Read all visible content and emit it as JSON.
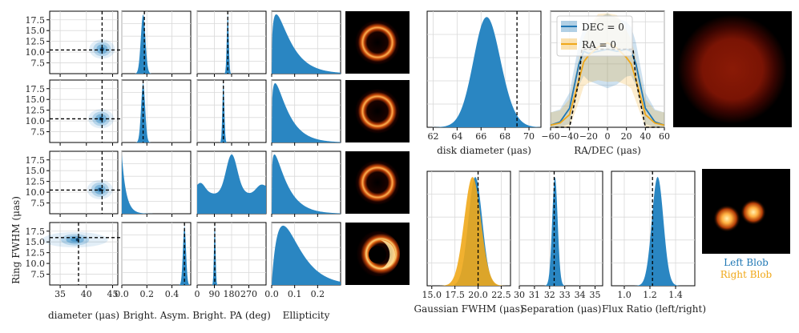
{
  "chart_data": {
    "type": "figure",
    "colors": {
      "blue": "#1f77b4",
      "fill_blue": "#2a86c2",
      "orange": "#f0a81a",
      "dashed": "#000000"
    },
    "corner_grid": {
      "ylabel": "Ring FWHM (μas)",
      "yticks": [
        "17.5",
        "15.0",
        "12.5",
        "10.0",
        "7.5"
      ],
      "yticks_values": [
        17.5,
        15.0,
        12.5,
        10.0,
        7.5
      ],
      "ylim": [
        5,
        19.5
      ],
      "columns": [
        {
          "xlabel": "diameter (μas)",
          "xticks": [
            "35",
            "40",
            "45"
          ],
          "xticks_values": [
            35,
            40,
            45
          ],
          "xlim": [
            33,
            46
          ]
        },
        {
          "xlabel": "Bright. Asym.",
          "xticks": [
            "0.0",
            "0.2",
            "0.4"
          ],
          "xticks_values": [
            0,
            0.2,
            0.4
          ],
          "xlim": [
            0,
            0.55
          ]
        },
        {
          "xlabel": "Bright. PA (deg)",
          "xticks": [
            "0",
            "90",
            "180",
            "270"
          ],
          "xticks_values": [
            0,
            90,
            180,
            270
          ],
          "xlim": [
            0,
            360
          ]
        },
        {
          "xlabel": "Ellipticity",
          "xticks": [
            "0.0",
            "0.1",
            "0.2"
          ],
          "xticks_values": [
            0,
            0.1,
            0.2
          ],
          "xlim": [
            0,
            0.3
          ]
        }
      ],
      "rows": [
        {
          "scatter_center": [
            43,
            10.7
          ],
          "truth": [
            43,
            10.5
          ],
          "asym": {
            "mean": 0.17,
            "sd": 0.018,
            "truth": 0.18
          },
          "pa": {
            "mode": "peak",
            "mean": 160,
            "sd": 5,
            "truth": 160
          },
          "ell": {
            "mode": 0.02,
            "scale": 0.055
          }
        },
        {
          "scatter_center": [
            42.8,
            10.5
          ],
          "truth": [
            43,
            10.5
          ],
          "asym": {
            "mean": 0.17,
            "sd": 0.016,
            "truth": 0.17
          },
          "pa": {
            "mode": "peak",
            "mean": 137,
            "sd": 5,
            "truth": 137
          },
          "ell": {
            "mode": 0.015,
            "scale": 0.05
          }
        },
        {
          "scatter_center": [
            42.6,
            10.6
          ],
          "truth": [
            43,
            10.5
          ],
          "asym": {
            "mode": "near_zero",
            "scale": 0.035
          },
          "pa": {
            "mode": "broad",
            "peak": 180,
            "truth": null
          },
          "ell": {
            "mode": 0.012,
            "scale": 0.05
          }
        },
        {
          "scatter_center": [
            38.3,
            15.5
          ],
          "truth": [
            38.5,
            16
          ],
          "asym": {
            "mean": 0.5,
            "sd": 0.012,
            "truth": 0.5
          },
          "pa": {
            "mode": "peak",
            "mean": 92,
            "sd": 4,
            "truth": 92
          },
          "ell": {
            "mode": 0.05,
            "scale": 0.055
          }
        }
      ]
    },
    "disk_panel": {
      "xlabel": "disk diameter (μas)",
      "xticks": [
        "62",
        "64",
        "66",
        "68",
        "70"
      ],
      "xticks_values": [
        62,
        64,
        66,
        68,
        70
      ],
      "xlim": [
        61.5,
        71
      ],
      "peak": 66.2,
      "sd": 1.1,
      "truth": 69
    },
    "profile_panel": {
      "xlabel": "RA/DEC (μas)",
      "xticks": [
        "−60",
        "−40",
        "−20",
        "0",
        "20",
        "40",
        "60"
      ],
      "xticks_values": [
        -60,
        -40,
        -20,
        0,
        20,
        40,
        60
      ],
      "xlim": [
        -60,
        60
      ],
      "legend": [
        "DEC = 0",
        "RA = 0"
      ],
      "series": [
        {
          "name": "DEC = 0",
          "x": [
            -60,
            -50,
            -40,
            -30,
            -25,
            -20,
            -10,
            0,
            10,
            20,
            25,
            30,
            40,
            50,
            60
          ],
          "y": [
            0.02,
            0.05,
            0.18,
            0.6,
            0.72,
            0.7,
            0.72,
            0.74,
            0.72,
            0.74,
            0.72,
            0.6,
            0.18,
            0.05,
            0.02
          ]
        },
        {
          "name": "RA = 0",
          "x": [
            -60,
            -50,
            -40,
            -30,
            -25,
            -20,
            -10,
            0,
            10,
            20,
            25,
            30,
            40,
            50,
            60
          ],
          "y": [
            0.02,
            0.04,
            0.12,
            0.45,
            0.62,
            0.68,
            0.76,
            0.8,
            0.75,
            0.66,
            0.6,
            0.45,
            0.12,
            0.04,
            0.02
          ]
        }
      ],
      "truth": {
        "x": [
          -55,
          -40,
          -30,
          -27,
          0,
          27,
          30,
          40,
          55
        ],
        "y": [
          0,
          0,
          0.45,
          0.74,
          0.74,
          0.74,
          0.45,
          0,
          0
        ]
      }
    },
    "gauss_panel": {
      "xlabel": "Gaussian FWHM (μas)",
      "xticks": [
        "15.0",
        "17.5",
        "20.0",
        "22.5"
      ],
      "xticks_values": [
        15,
        17.5,
        20,
        22.5
      ],
      "xlim": [
        14.5,
        23.5
      ],
      "left": {
        "mean": 19.7,
        "sd": 0.75
      },
      "right": {
        "mean": 19.4,
        "sd": 0.9
      },
      "truth": 20
    },
    "sep_panel": {
      "xlabel": "Separation (μas)",
      "xticks": [
        "30",
        "31",
        "32",
        "33",
        "34",
        "35"
      ],
      "xticks_values": [
        30,
        31,
        32,
        33,
        34,
        35
      ],
      "xlim": [
        30,
        35.5
      ],
      "mean": 32.35,
      "sd": 0.18,
      "truth": 32.3
    },
    "ratio_panel": {
      "xlabel": "Flux Ratio (left/right)",
      "xticks": [
        "1.0",
        "1.2",
        "1.4"
      ],
      "xticks_values": [
        1.0,
        1.2,
        1.4
      ],
      "xlim": [
        0.9,
        1.55
      ],
      "mean": 1.26,
      "sd": 0.045,
      "truth": 1.22
    },
    "blob_legend": [
      "Left Blob",
      "Right Blob"
    ],
    "thumbnails": [
      "ring-image-1",
      "ring-image-2",
      "ring-image-3",
      "crescent-image-4",
      "disk-image",
      "two-blob-image"
    ]
  }
}
